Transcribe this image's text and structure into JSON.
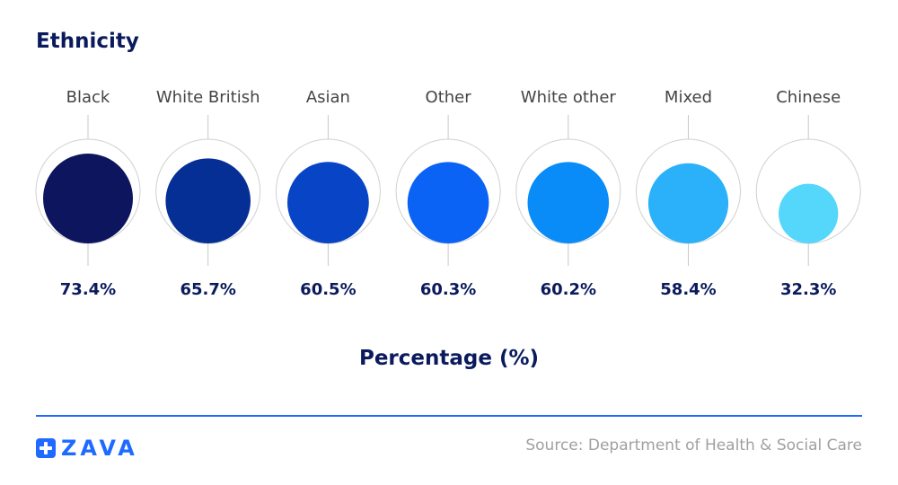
{
  "chart_data": {
    "type": "bubble",
    "title": "Ethnicity",
    "xlabel": "Percentage (%)",
    "categories": [
      "Black",
      "White British",
      "Asian",
      "Other",
      "White other",
      "Mixed",
      "Chinese"
    ],
    "values": [
      73.4,
      65.7,
      60.5,
      60.3,
      60.2,
      58.4,
      32.3
    ],
    "value_labels": [
      "73.4%",
      "65.7%",
      "60.5%",
      "60.3%",
      "60.2%",
      "58.4%",
      "32.3%"
    ],
    "colors": [
      "#0d155e",
      "#062f96",
      "#0845c6",
      "#0a63f5",
      "#0a8cf8",
      "#2ab1f9",
      "#55d6fb"
    ]
  },
  "footer": {
    "logo_text": "ZAVA",
    "source": "Source: Department of Health & Social Care",
    "line_color": "#1f6bff"
  }
}
